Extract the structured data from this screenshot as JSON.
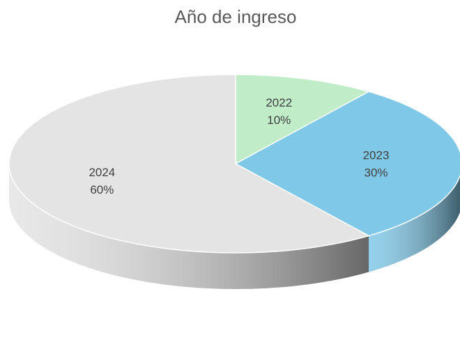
{
  "chart_data": {
    "type": "pie",
    "title": "Año de ingreso",
    "categories": [
      "2022",
      "2023",
      "2024"
    ],
    "values": [
      10,
      30,
      60
    ],
    "value_labels": [
      "10%",
      "30%",
      "60%"
    ],
    "colors": [
      "#c0ecc8",
      "#80c8e8",
      "#e4e4e4"
    ]
  }
}
